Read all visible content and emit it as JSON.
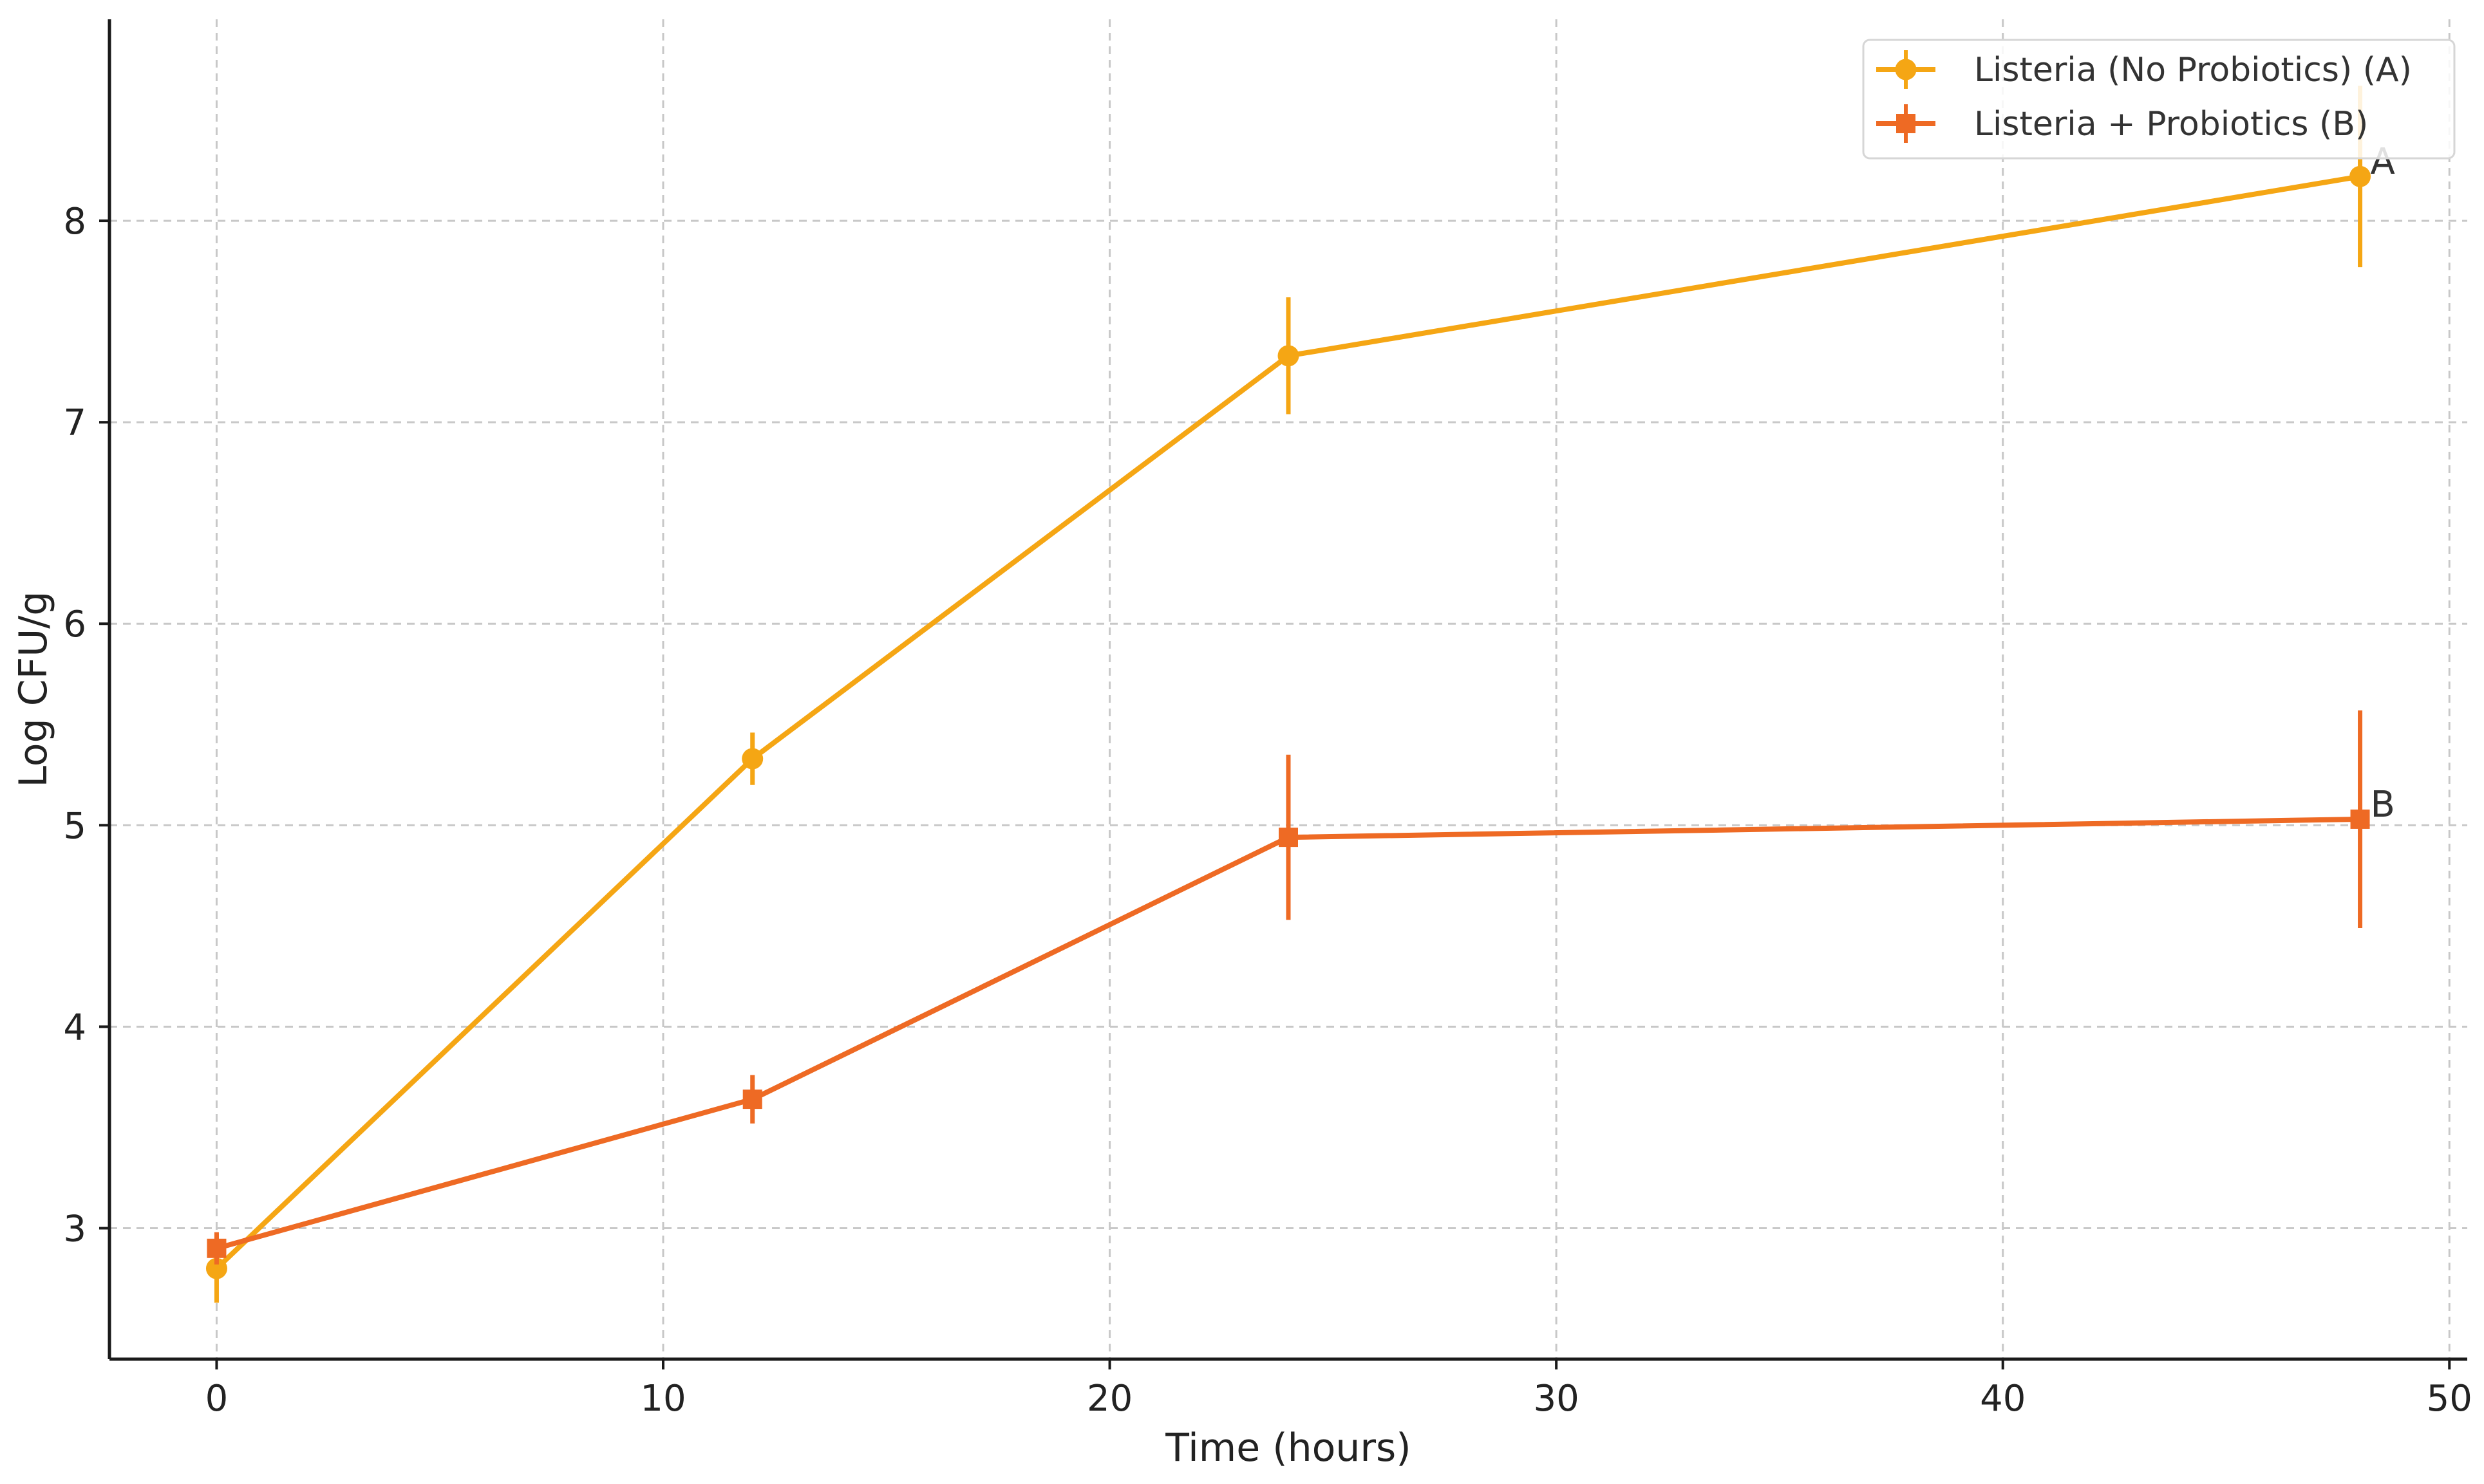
{
  "chart_data": {
    "type": "line",
    "title": "",
    "xlabel": "Time (hours)",
    "ylabel": "Log CFU/g",
    "xlim": [
      -2.4,
      50.4
    ],
    "ylim": [
      2.35,
      9.0
    ],
    "x_ticks": [
      0,
      10,
      20,
      30,
      40,
      50
    ],
    "y_ticks": [
      3,
      4,
      5,
      6,
      7,
      8
    ],
    "grid": true,
    "grid_style": "dashed",
    "legend_position": "top-right",
    "series": [
      {
        "name": "Listeria (No Probiotics) (A)",
        "color": "#F5A614",
        "marker": "circle",
        "x": [
          0,
          12,
          24,
          48
        ],
        "y": [
          2.8,
          5.33,
          7.33,
          8.22
        ],
        "error": [
          0.17,
          0.13,
          0.29,
          0.45
        ],
        "end_label": "A"
      },
      {
        "name": "Listeria + Probiotics (B)",
        "color": "#EE6A24",
        "marker": "square",
        "x": [
          0,
          12,
          24,
          48
        ],
        "y": [
          2.9,
          3.64,
          4.94,
          5.03
        ],
        "error": [
          0.08,
          0.12,
          0.41,
          0.54
        ],
        "end_label": "B"
      }
    ]
  }
}
